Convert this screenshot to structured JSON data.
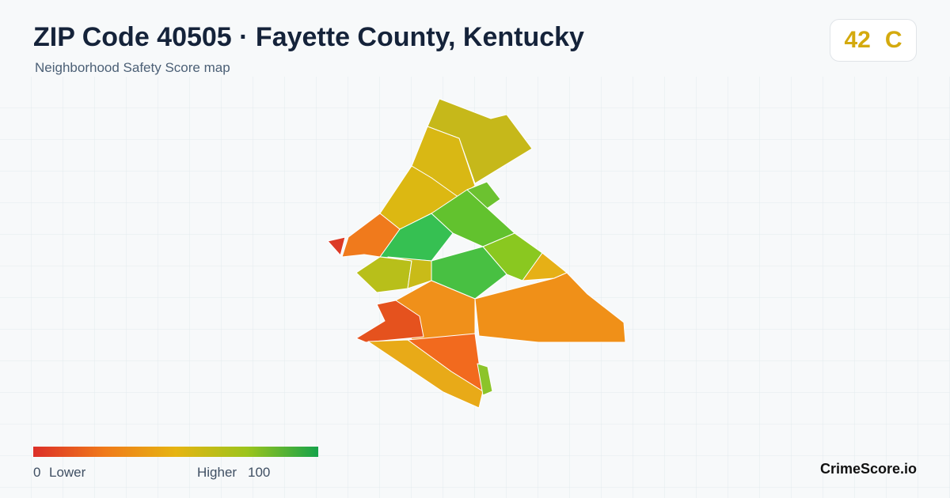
{
  "header": {
    "title": "ZIP Code 40505 · Fayette County, Kentucky",
    "subtitle": "Neighborhood Safety Score map"
  },
  "score": {
    "value": "42",
    "grade": "C"
  },
  "legend": {
    "min": "0",
    "min_label": "Lower",
    "max_label": "Higher",
    "max": "100"
  },
  "brand": "CrimeScore.io"
}
